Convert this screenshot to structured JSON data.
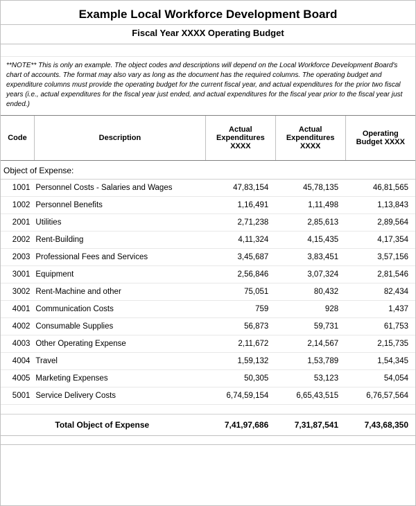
{
  "header": {
    "title": "Example Local Workforce Development Board",
    "subtitle": "Fiscal Year XXXX Operating Budget"
  },
  "note": "**NOTE** This is only an example. The object codes and descriptions will depend on the Local Workforce Development Board's chart of accounts. The format may also vary as long as the document has the required columns. The operating budget and expenditure columns must provide the operating budget for the current fiscal year, and actual expenditures for the prior two fiscal years (i.e., actual expenditures for the fiscal year just ended, and actual expenditures for the fiscal year prior to the fiscal year just ended.)",
  "columns": {
    "code": "Code",
    "description": "Description",
    "col1": "Actual Expenditures XXXX",
    "col2": "Actual Expenditures XXXX",
    "col3": "Operating Budget XXXX"
  },
  "section_header": "Object of Expense:",
  "rows": [
    {
      "code": "1001",
      "desc": "Personnel Costs - Salaries and Wages",
      "v1": "47,83,154",
      "v2": "45,78,135",
      "v3": "46,81,565"
    },
    {
      "code": "1002",
      "desc": "Personnel Benefits",
      "v1": "1,16,491",
      "v2": "1,11,498",
      "v3": "1,13,843"
    },
    {
      "code": "2001",
      "desc": "Utilities",
      "v1": "2,71,238",
      "v2": "2,85,613",
      "v3": "2,89,564"
    },
    {
      "code": "2002",
      "desc": "Rent-Building",
      "v1": "4,11,324",
      "v2": "4,15,435",
      "v3": "4,17,354"
    },
    {
      "code": "2003",
      "desc": "Professional Fees and Services",
      "v1": "3,45,687",
      "v2": "3,83,451",
      "v3": "3,57,156"
    },
    {
      "code": "3001",
      "desc": "Equipment",
      "v1": "2,56,846",
      "v2": "3,07,324",
      "v3": "2,81,546"
    },
    {
      "code": "3002",
      "desc": "Rent-Machine and other",
      "v1": "75,051",
      "v2": "80,432",
      "v3": "82,434"
    },
    {
      "code": "4001",
      "desc": "Communication Costs",
      "v1": "759",
      "v2": "928",
      "v3": "1,437"
    },
    {
      "code": "4002",
      "desc": "Consumable Supplies",
      "v1": "56,873",
      "v2": "59,731",
      "v3": "61,753"
    },
    {
      "code": "4003",
      "desc": "Other Operating Expense",
      "v1": "2,11,672",
      "v2": "2,14,567",
      "v3": "2,15,735"
    },
    {
      "code": "4004",
      "desc": "Travel",
      "v1": "1,59,132",
      "v2": "1,53,789",
      "v3": "1,54,345"
    },
    {
      "code": "4005",
      "desc": "Marketing Expenses",
      "v1": "50,305",
      "v2": "53,123",
      "v3": "54,054"
    },
    {
      "code": "5001",
      "desc": "Service Delivery Costs",
      "v1": "6,74,59,154",
      "v2": "6,65,43,515",
      "v3": "6,76,57,564"
    }
  ],
  "total": {
    "label": "Total Object of Expense",
    "v1": "7,41,97,686",
    "v2": "7,31,87,541",
    "v3": "7,43,68,350"
  }
}
